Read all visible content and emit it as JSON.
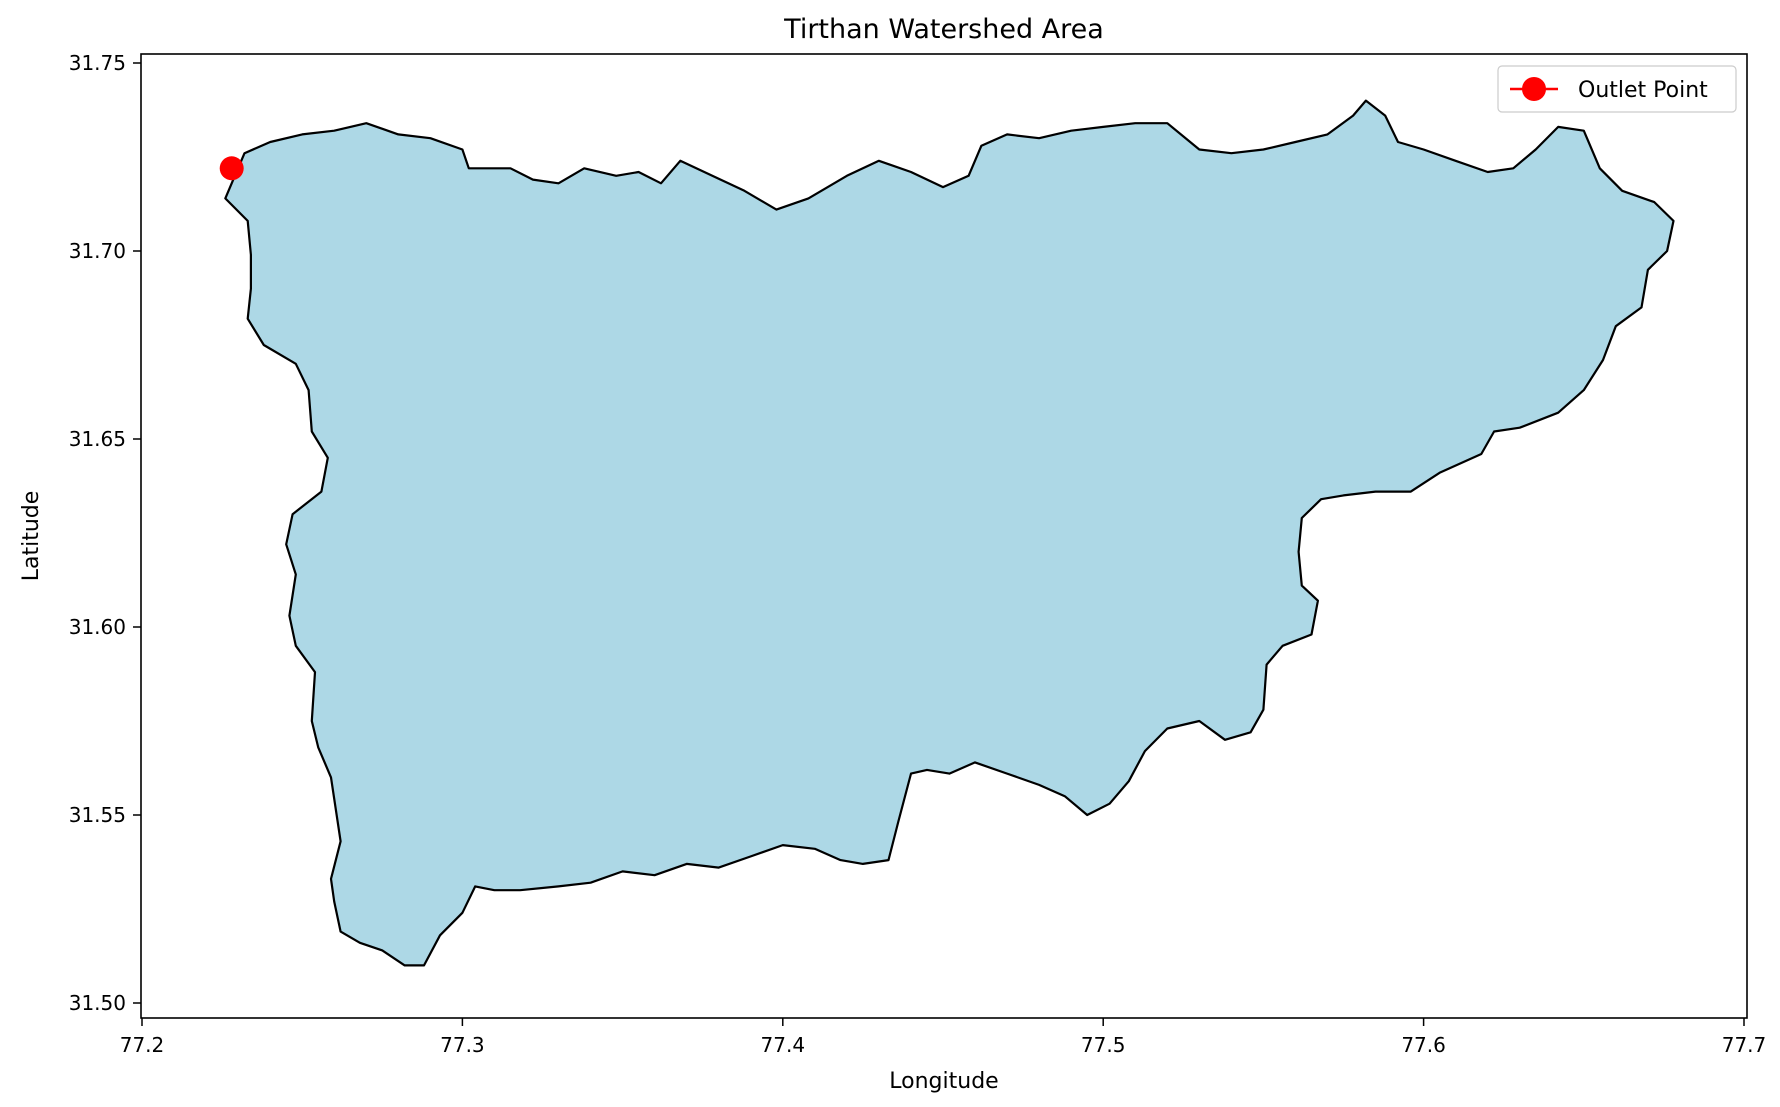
{
  "chart_data": {
    "type": "area",
    "title": "Tirthan Watershed Area",
    "xlabel": "Longitude",
    "ylabel": "Latitude",
    "xlim": [
      77.2,
      77.7
    ],
    "ylim": [
      31.5,
      31.75
    ],
    "xticks": [
      "77.2",
      "77.3",
      "77.4",
      "77.5",
      "77.6",
      "77.7"
    ],
    "yticks": [
      "31.50",
      "31.55",
      "31.60",
      "31.65",
      "31.70",
      "31.75"
    ],
    "grid": false,
    "legend_position": "top-right",
    "series": [
      {
        "name": "Watershed",
        "fill": "#add8e6",
        "stroke": "#000000",
        "boundary": [
          [
            77.228,
            31.718
          ],
          [
            77.232,
            31.726
          ],
          [
            77.24,
            31.729
          ],
          [
            77.25,
            31.731
          ],
          [
            77.26,
            31.732
          ],
          [
            77.27,
            31.734
          ],
          [
            77.28,
            31.731
          ],
          [
            77.29,
            31.73
          ],
          [
            77.3,
            31.727
          ],
          [
            77.302,
            31.722
          ],
          [
            77.315,
            31.722
          ],
          [
            77.322,
            31.719
          ],
          [
            77.33,
            31.718
          ],
          [
            77.338,
            31.722
          ],
          [
            77.348,
            31.72
          ],
          [
            77.355,
            31.721
          ],
          [
            77.362,
            31.718
          ],
          [
            77.368,
            31.724
          ],
          [
            77.378,
            31.72
          ],
          [
            77.388,
            31.716
          ],
          [
            77.398,
            31.711
          ],
          [
            77.408,
            31.714
          ],
          [
            77.42,
            31.72
          ],
          [
            77.43,
            31.724
          ],
          [
            77.44,
            31.721
          ],
          [
            77.45,
            31.717
          ],
          [
            77.458,
            31.72
          ],
          [
            77.462,
            31.728
          ],
          [
            77.47,
            31.731
          ],
          [
            77.48,
            31.73
          ],
          [
            77.49,
            31.732
          ],
          [
            77.5,
            31.733
          ],
          [
            77.51,
            31.734
          ],
          [
            77.52,
            31.734
          ],
          [
            77.53,
            31.727
          ],
          [
            77.54,
            31.726
          ],
          [
            77.55,
            31.727
          ],
          [
            77.56,
            31.729
          ],
          [
            77.57,
            31.731
          ],
          [
            77.578,
            31.736
          ],
          [
            77.582,
            31.74
          ],
          [
            77.588,
            31.736
          ],
          [
            77.592,
            31.729
          ],
          [
            77.6,
            31.727
          ],
          [
            77.61,
            31.724
          ],
          [
            77.62,
            31.721
          ],
          [
            77.628,
            31.722
          ],
          [
            77.635,
            31.727
          ],
          [
            77.642,
            31.733
          ],
          [
            77.65,
            31.732
          ],
          [
            77.655,
            31.722
          ],
          [
            77.662,
            31.716
          ],
          [
            77.672,
            31.713
          ],
          [
            77.678,
            31.708
          ],
          [
            77.676,
            31.7
          ],
          [
            77.67,
            31.695
          ],
          [
            77.668,
            31.685
          ],
          [
            77.66,
            31.68
          ],
          [
            77.656,
            31.671
          ],
          [
            77.65,
            31.663
          ],
          [
            77.642,
            31.657
          ],
          [
            77.63,
            31.653
          ],
          [
            77.622,
            31.652
          ],
          [
            77.618,
            31.646
          ],
          [
            77.605,
            31.641
          ],
          [
            77.596,
            31.636
          ],
          [
            77.585,
            31.636
          ],
          [
            77.575,
            31.635
          ],
          [
            77.568,
            31.634
          ],
          [
            77.562,
            31.629
          ],
          [
            77.561,
            31.62
          ],
          [
            77.562,
            31.611
          ],
          [
            77.567,
            31.607
          ],
          [
            77.565,
            31.598
          ],
          [
            77.556,
            31.595
          ],
          [
            77.551,
            31.59
          ],
          [
            77.55,
            31.578
          ],
          [
            77.546,
            31.572
          ],
          [
            77.538,
            31.57
          ],
          [
            77.53,
            31.575
          ],
          [
            77.52,
            31.573
          ],
          [
            77.513,
            31.567
          ],
          [
            77.508,
            31.559
          ],
          [
            77.502,
            31.553
          ],
          [
            77.495,
            31.55
          ],
          [
            77.488,
            31.555
          ],
          [
            77.48,
            31.558
          ],
          [
            77.47,
            31.561
          ],
          [
            77.46,
            31.564
          ],
          [
            77.452,
            31.561
          ],
          [
            77.445,
            31.562
          ],
          [
            77.44,
            31.561
          ],
          [
            77.436,
            31.548
          ],
          [
            77.433,
            31.538
          ],
          [
            77.425,
            31.537
          ],
          [
            77.418,
            31.538
          ],
          [
            77.41,
            31.541
          ],
          [
            77.4,
            31.542
          ],
          [
            77.39,
            31.539
          ],
          [
            77.38,
            31.536
          ],
          [
            77.37,
            31.537
          ],
          [
            77.36,
            31.534
          ],
          [
            77.35,
            31.535
          ],
          [
            77.34,
            31.532
          ],
          [
            77.33,
            31.531
          ],
          [
            77.318,
            31.53
          ],
          [
            77.31,
            31.53
          ],
          [
            77.304,
            31.531
          ],
          [
            77.3,
            31.524
          ],
          [
            77.293,
            31.518
          ],
          [
            77.288,
            31.51
          ],
          [
            77.282,
            31.51
          ],
          [
            77.275,
            31.514
          ],
          [
            77.268,
            31.516
          ],
          [
            77.262,
            31.519
          ],
          [
            77.26,
            31.527
          ],
          [
            77.259,
            31.533
          ],
          [
            77.262,
            31.543
          ],
          [
            77.259,
            31.56
          ],
          [
            77.255,
            31.568
          ],
          [
            77.253,
            31.575
          ],
          [
            77.254,
            31.588
          ],
          [
            77.248,
            31.595
          ],
          [
            77.246,
            31.603
          ],
          [
            77.248,
            31.614
          ],
          [
            77.245,
            31.622
          ],
          [
            77.247,
            31.63
          ],
          [
            77.256,
            31.636
          ],
          [
            77.258,
            31.645
          ],
          [
            77.253,
            31.652
          ],
          [
            77.252,
            31.663
          ],
          [
            77.248,
            31.67
          ],
          [
            77.238,
            31.675
          ],
          [
            77.233,
            31.682
          ],
          [
            77.234,
            31.69
          ],
          [
            77.234,
            31.699
          ],
          [
            77.233,
            31.708
          ],
          [
            77.226,
            31.714
          ]
        ]
      },
      {
        "name": "Outlet Point",
        "type": "point",
        "color": "#ff0000",
        "points": [
          [
            77.228,
            31.722
          ]
        ]
      }
    ]
  }
}
